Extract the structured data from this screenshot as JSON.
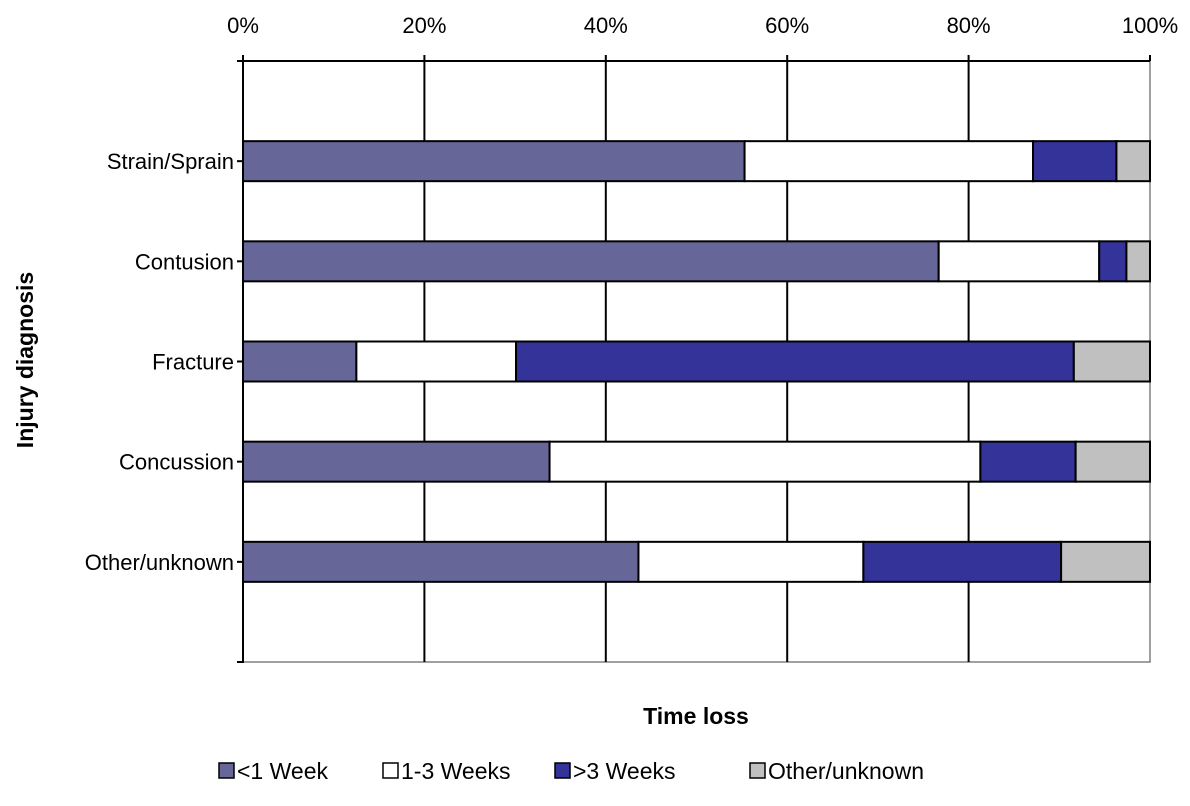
{
  "chart_data": {
    "type": "bar",
    "orientation": "horizontal",
    "stacked": "percent",
    "title": "",
    "xlabel": "Time loss",
    "ylabel": "Injury diagnosis",
    "xlim": [
      0,
      100
    ],
    "x_ticks": [
      "0%",
      "20%",
      "40%",
      "60%",
      "80%",
      "100%"
    ],
    "x_tick_values": [
      0,
      20,
      40,
      60,
      80,
      100
    ],
    "x_axis_position": "top",
    "grid": true,
    "legend_position": "bottom",
    "categories": [
      "Strain/Sprain",
      "Contusion",
      "Fracture",
      "Concussion",
      "Other/unknown"
    ],
    "series": [
      {
        "name": "<1 Week",
        "color": "#666699",
        "values": [
          55.3,
          76.7,
          12.5,
          33.8,
          43.6
        ]
      },
      {
        "name": "1-3 Weeks",
        "color": "#ffffff",
        "values": [
          31.8,
          17.7,
          17.6,
          47.5,
          24.8
        ]
      },
      {
        "name": ">3 Weeks",
        "color": "#333399",
        "values": [
          9.2,
          3.0,
          61.5,
          10.5,
          21.8
        ]
      },
      {
        "name": "Other/unknown",
        "color": "#c0c0c0",
        "values": [
          3.7,
          2.6,
          8.4,
          8.2,
          9.8
        ]
      }
    ]
  }
}
